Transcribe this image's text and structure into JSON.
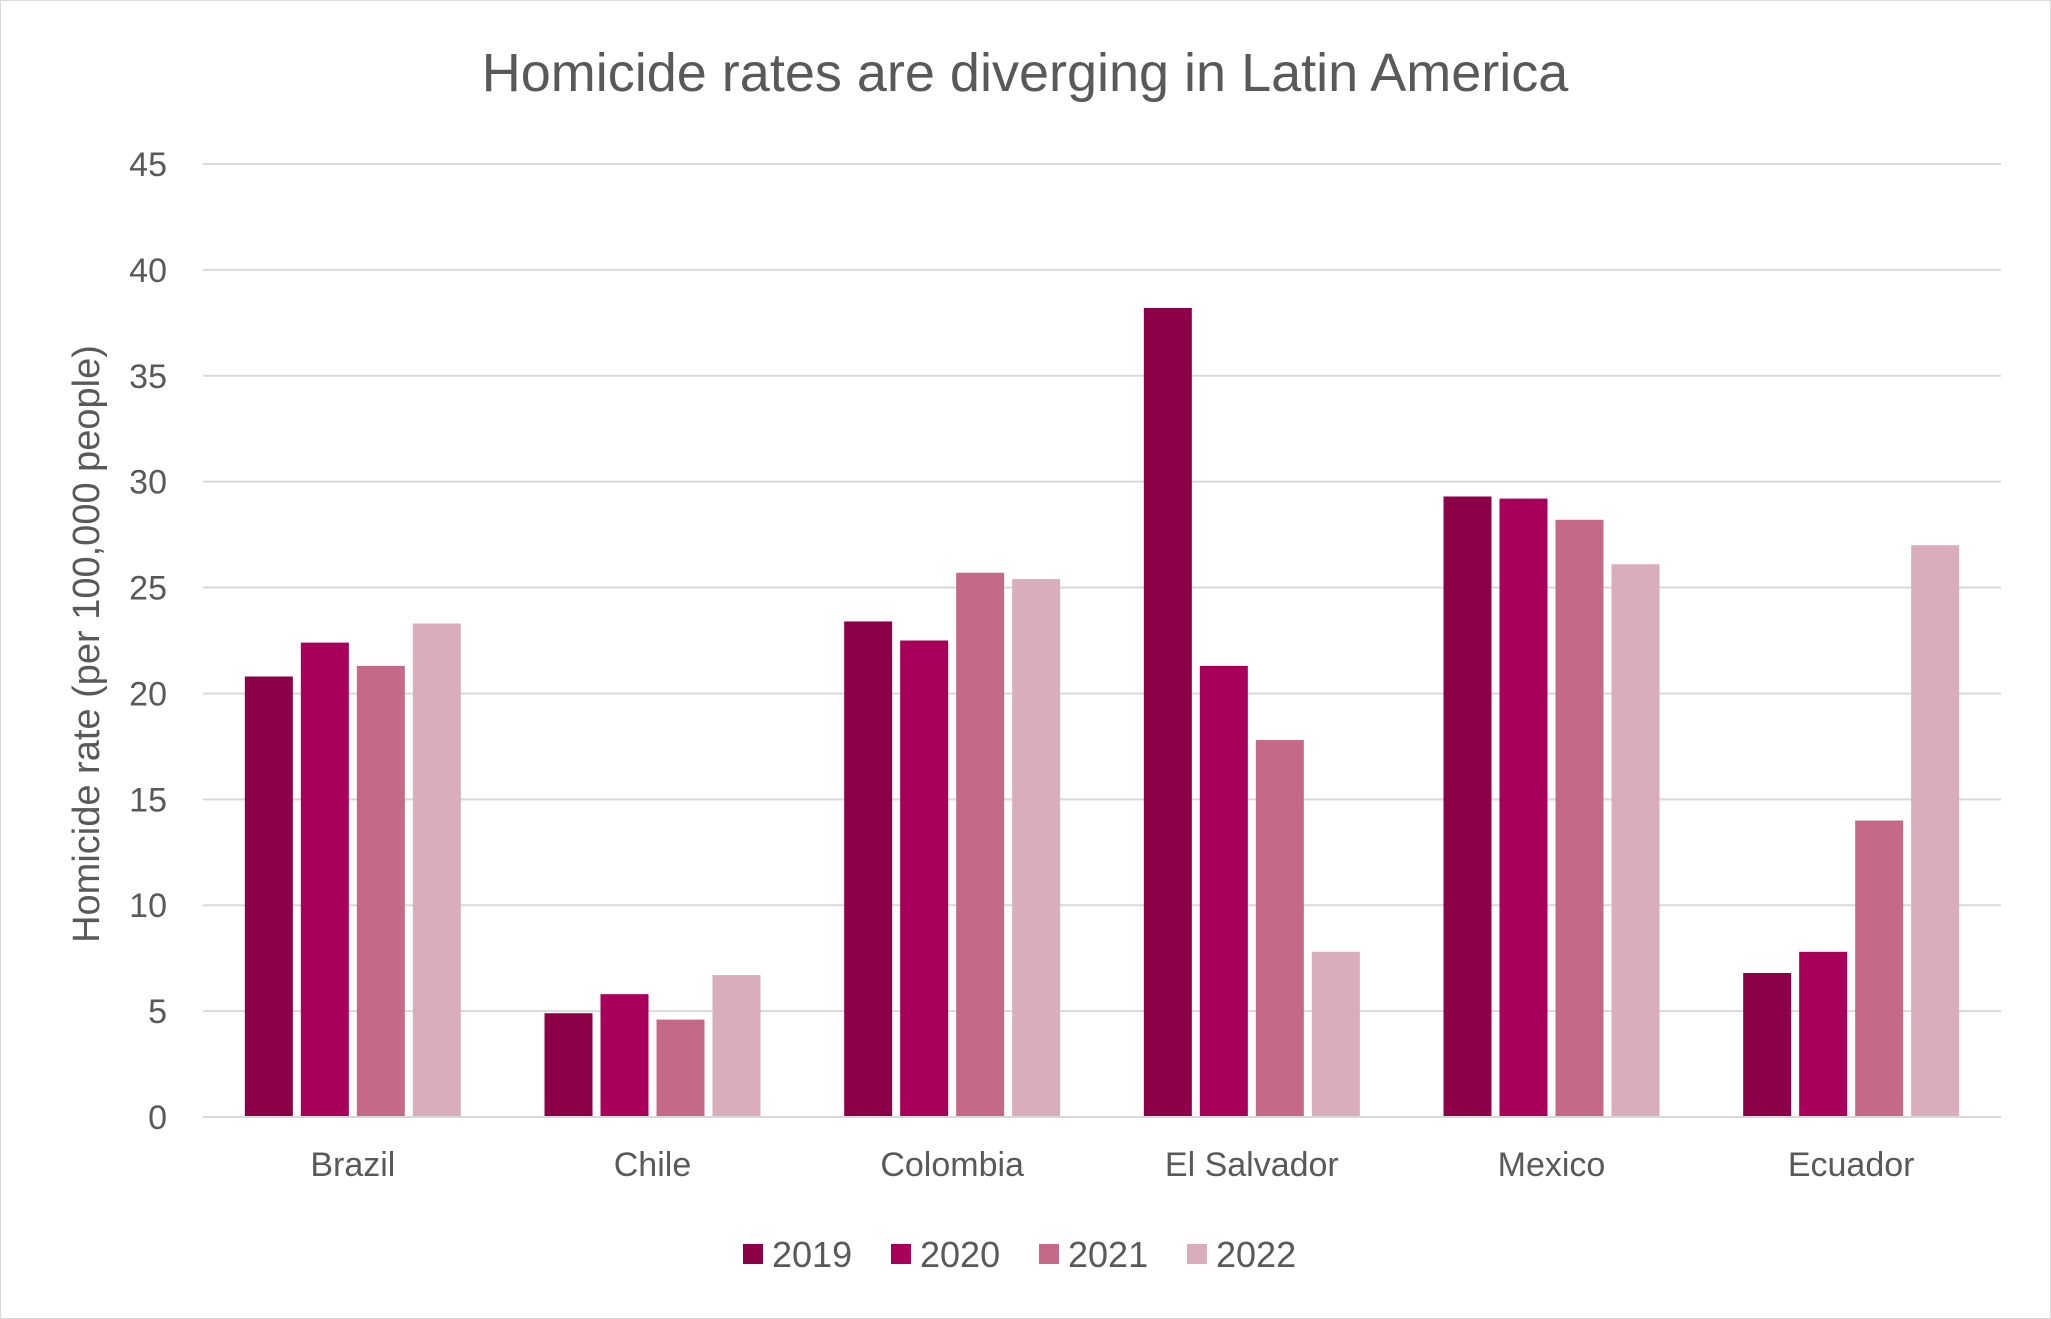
{
  "chart_data": {
    "type": "bar",
    "title": "Homicide rates are diverging in Latin America",
    "xlabel": "",
    "ylabel": "Homicide rate (per 100,000 people)",
    "ylim": [
      0,
      45
    ],
    "yticks": [
      0,
      5,
      10,
      15,
      20,
      25,
      30,
      35,
      40,
      45
    ],
    "grid": true,
    "legend_position": "bottom",
    "categories": [
      "Brazil",
      "Chile",
      "Colombia",
      "El Salvador",
      "Mexico",
      "Ecuador"
    ],
    "series": [
      {
        "name": "2019",
        "color": "#8c0047",
        "values": [
          20.8,
          4.9,
          23.4,
          38.2,
          29.3,
          6.8
        ]
      },
      {
        "name": "2020",
        "color": "#a8005a",
        "values": [
          22.4,
          5.8,
          22.5,
          21.3,
          29.2,
          7.8
        ]
      },
      {
        "name": "2021",
        "color": "#c46a88",
        "values": [
          21.3,
          4.6,
          25.7,
          17.8,
          28.2,
          14.0
        ]
      },
      {
        "name": "2022",
        "color": "#d9adbb",
        "values": [
          23.3,
          6.7,
          25.4,
          7.8,
          26.1,
          27.0
        ]
      }
    ]
  }
}
